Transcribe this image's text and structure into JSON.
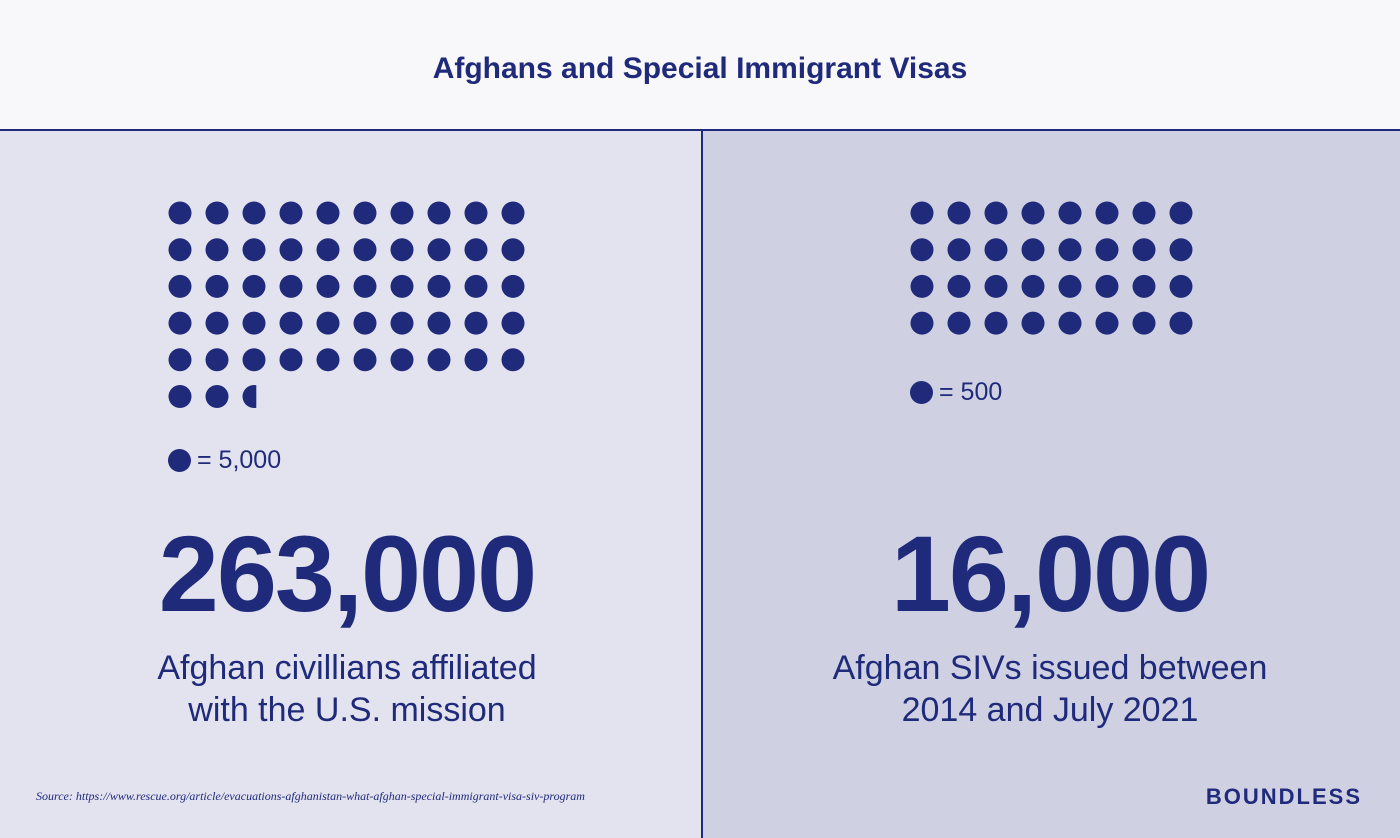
{
  "title": "Afghans and Special Immigrant Visas",
  "colors": {
    "accent": "#1f2a7a",
    "left_panel": "#e3e3ef",
    "right_panel": "#cfd1e3",
    "header_bg": "#f8f8fa"
  },
  "chart_data": [
    {
      "type": "pictogram",
      "series": [
        {
          "name": "Afghan civillians affiliated with the U.S. mission",
          "values": [
            263000
          ]
        }
      ],
      "unit_value": 5000,
      "dots": 52.6,
      "legend": "= 5,000",
      "big_number": "263,000",
      "caption_line1": "Afghan civillians affiliated",
      "caption_line2": "with the U.S. mission"
    },
    {
      "type": "pictogram",
      "series": [
        {
          "name": "Afghan SIVs issued between 2014 and July 2021",
          "values": [
            16000
          ]
        }
      ],
      "unit_value": 500,
      "dots": 32,
      "legend": "= 500",
      "big_number": "16,000",
      "caption_line1": "Afghan SIVs issued between",
      "caption_line2": "2014 and July 2021"
    }
  ],
  "source": "Source: https://www.rescue.org/article/evacuations-afghanistan-what-afghan-special-immigrant-visa-siv-program",
  "brand": "BOUNDLESS"
}
